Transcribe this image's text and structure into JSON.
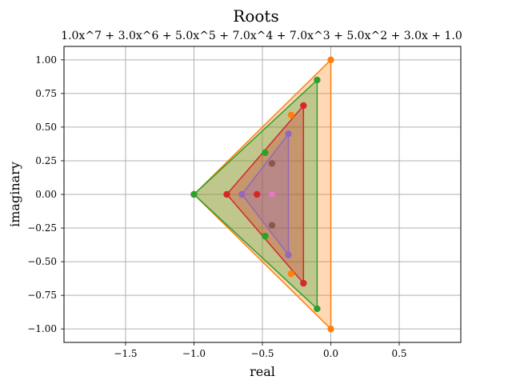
{
  "chart_data": {
    "type": "scatter",
    "title": "Roots",
    "subtitle": "1.0x^7 + 3.0x^6 + 5.0x^5 + 7.0x^4 + 7.0x^3 + 5.0x^2 + 3.0x + 1.0",
    "xlabel": "real",
    "ylabel": "imaginary",
    "xlim": [
      -1.95,
      0.95
    ],
    "ylim": [
      -1.1,
      1.1
    ],
    "xticks": [
      -1.5,
      -1.0,
      -0.5,
      0.0,
      0.5
    ],
    "xtick_labels": [
      "−1.5",
      "−1.0",
      "−0.5",
      "0.0",
      "0.5"
    ],
    "yticks": [
      1.0,
      0.75,
      0.5,
      0.25,
      0.0,
      -0.25,
      -0.5,
      -0.75,
      -1.0
    ],
    "ytick_labels": [
      "1.00",
      "0.75",
      "0.50",
      "0.25",
      "0.00",
      "−0.25",
      "−0.50",
      "−0.75",
      "−1.00"
    ],
    "grid": true,
    "series": [
      {
        "color": "#ff7f0e",
        "points": [
          [
            0.0,
            1.0
          ],
          [
            0.0,
            -1.0
          ],
          [
            -1.0,
            0.0
          ]
        ],
        "filled": true
      },
      {
        "color": "#2ca02c",
        "points": [
          [
            -0.1,
            0.85
          ],
          [
            -0.1,
            -0.85
          ],
          [
            -1.0,
            0.0
          ]
        ],
        "filled": true
      },
      {
        "color": "#d62728",
        "points": [
          [
            -0.2,
            0.66
          ],
          [
            -0.2,
            -0.66
          ],
          [
            -0.76,
            0.0
          ]
        ],
        "filled": true
      },
      {
        "color": "#9467bd",
        "points": [
          [
            -0.31,
            0.45
          ],
          [
            -0.31,
            -0.45
          ],
          [
            -0.65,
            0.0
          ]
        ],
        "filled": true
      },
      {
        "color": "#ff7f0e",
        "points": [
          [
            -0.29,
            0.59
          ],
          [
            -0.29,
            -0.59
          ]
        ],
        "filled": false
      },
      {
        "color": "#2ca02c",
        "points": [
          [
            -0.48,
            0.31
          ],
          [
            -0.48,
            -0.31
          ]
        ],
        "filled": false
      },
      {
        "color": "#d62728",
        "points": [
          [
            -0.54,
            0.0
          ]
        ],
        "filled": false
      },
      {
        "color": "#8c564b",
        "points": [
          [
            -0.43,
            0.23
          ],
          [
            -0.43,
            -0.23
          ]
        ],
        "filled": false
      },
      {
        "color": "#e377c2",
        "points": [
          [
            -0.43,
            0.0
          ]
        ],
        "filled": false
      }
    ]
  }
}
